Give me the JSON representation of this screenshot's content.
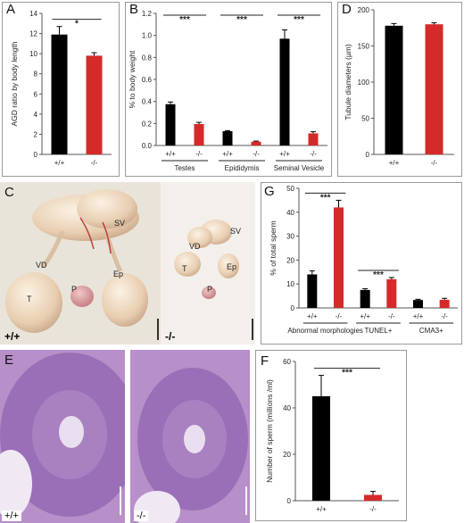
{
  "colors": {
    "wild_type": "#000000",
    "knockout": "#d42a2a",
    "axis": "#555555",
    "error": "#000000"
  },
  "photos": {
    "C": {
      "panel_label": "C",
      "labels": {
        "sv": "SV",
        "vd": "VD",
        "ep": "Ep",
        "t": "T",
        "p": "P"
      },
      "genotype_wt": "+/+",
      "genotype_ko": "-/-"
    },
    "E": {
      "panel_label": "E",
      "genotype_wt": "+/+",
      "genotype_ko": "-/-"
    }
  },
  "chart_data": [
    {
      "id": "A",
      "panel_label": "A",
      "type": "bar",
      "categories": [
        "+/+",
        "-/-"
      ],
      "values": [
        11.9,
        9.8
      ],
      "errors": [
        0.8,
        0.3
      ],
      "colors": [
        "#000000",
        "#d42a2a"
      ],
      "ylabel": "AGD ratio by body length",
      "ylim": [
        0,
        14
      ],
      "yticks": [
        0,
        2,
        4,
        6,
        8,
        10,
        12,
        14
      ],
      "significance": [
        {
          "label": "*",
          "from": 0,
          "to": 1
        }
      ]
    },
    {
      "id": "B",
      "panel_label": "B",
      "type": "bar",
      "groups": [
        "Testes",
        "Epididymis",
        "Seminal Vesicle"
      ],
      "categories": [
        "+/+",
        "-/-",
        "+/+",
        "-/-",
        "+/+",
        "-/-"
      ],
      "values": [
        0.375,
        0.195,
        0.13,
        0.035,
        0.97,
        0.11
      ],
      "errors": [
        0.02,
        0.015,
        0.005,
        0.005,
        0.08,
        0.015
      ],
      "colors": [
        "#000000",
        "#d42a2a",
        "#000000",
        "#d42a2a",
        "#000000",
        "#d42a2a"
      ],
      "ylabel": "% to body weight",
      "ylim": [
        0,
        1.2
      ],
      "yticks": [
        0.0,
        0.2,
        0.4,
        0.6,
        0.8,
        1.0,
        1.2
      ],
      "yticklabels": [
        "0.0",
        "0.2",
        "0.4",
        "0.6",
        "0.8",
        "1.0",
        "1.2"
      ],
      "significance": [
        {
          "label": "***",
          "from": 0,
          "to": 1
        },
        {
          "label": "***",
          "from": 2,
          "to": 3
        },
        {
          "label": "***",
          "from": 4,
          "to": 5
        }
      ]
    },
    {
      "id": "D",
      "panel_label": "D",
      "type": "bar",
      "categories": [
        "+/+",
        "-/-"
      ],
      "values": [
        178,
        180
      ],
      "errors": [
        3,
        2
      ],
      "colors": [
        "#000000",
        "#d42a2a"
      ],
      "ylabel": "Tubule diameters (µm)",
      "ylim": [
        0,
        200
      ],
      "yticks": [
        0,
        50,
        100,
        150,
        200
      ]
    },
    {
      "id": "G",
      "panel_label": "G",
      "type": "bar",
      "groups": [
        "Abnormal morphologies",
        "TUNEL+",
        "CMA3+"
      ],
      "categories": [
        "+/+",
        "-/-",
        "+/+",
        "-/-",
        "+/+",
        "-/-"
      ],
      "values": [
        14,
        42,
        7.5,
        12,
        3.3,
        3.4
      ],
      "errors": [
        1.5,
        3,
        0.5,
        0.7,
        0.3,
        0.6
      ],
      "colors": [
        "#000000",
        "#d42a2a",
        "#000000",
        "#d42a2a",
        "#000000",
        "#d42a2a"
      ],
      "ylabel": "% of total sperm",
      "ylim": [
        0,
        50
      ],
      "yticks": [
        0,
        10,
        20,
        30,
        40,
        50
      ],
      "significance": [
        {
          "label": "***",
          "from": 0,
          "to": 1
        },
        {
          "label": "***",
          "from": 2,
          "to": 3
        }
      ]
    },
    {
      "id": "F",
      "panel_label": "F",
      "type": "bar",
      "categories": [
        "+/+",
        "-/-"
      ],
      "values": [
        45,
        2.5
      ],
      "errors": [
        9,
        1.5
      ],
      "colors": [
        "#000000",
        "#d42a2a"
      ],
      "ylabel": "Number of sperm (millions /ml)",
      "ylim": [
        0,
        60
      ],
      "yticks": [
        0,
        20,
        40,
        60
      ],
      "significance": [
        {
          "label": "***",
          "from": 0,
          "to": 1
        }
      ]
    }
  ]
}
